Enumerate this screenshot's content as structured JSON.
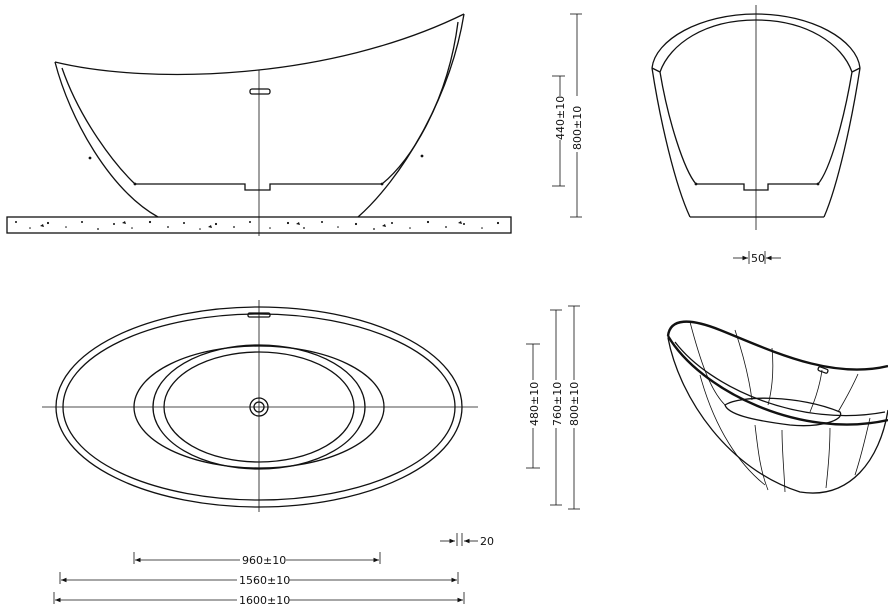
{
  "dimensions": {
    "side_bowl_height": "440±10",
    "side_total_height": "800±10",
    "end_wall_thickness": "50",
    "top_inner_width": "480±10",
    "top_basin_width": "760±10",
    "top_total_width": "800±10",
    "rim_thickness": "20",
    "inner_length": "960±10",
    "basin_length": "1560±10",
    "total_length": "1600±10"
  }
}
